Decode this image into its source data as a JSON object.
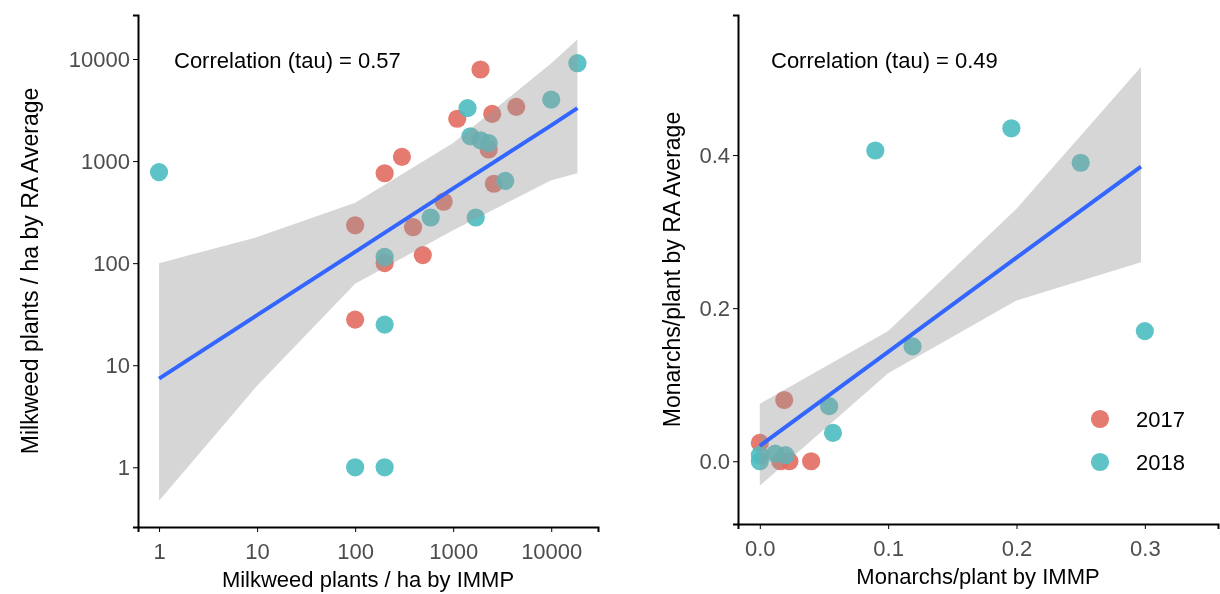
{
  "chart_data": [
    {
      "type": "scatter",
      "xlabel": "Milkweed plants / ha by IMMP",
      "ylabel": "Milkweed plants / ha by RA Average",
      "log": "xy",
      "xlim": [
        0.61,
        30000
      ],
      "ylim": [
        0.26,
        27000
      ],
      "xticks": [
        1,
        10,
        100,
        1000,
        10000
      ],
      "yticks": [
        1,
        10,
        100,
        1000,
        10000
      ],
      "marker": "circle",
      "legend": false,
      "annotations": [
        "Correlation (tau) = 0.57"
      ],
      "series": [
        {
          "type": "line",
          "marker": "none",
          "color": "#3366ff",
          "x": [
            1,
            10,
            100,
            1000,
            10000,
            18500
          ],
          "values": [
            7.4,
            31,
            129,
            540,
            2240,
            3300
          ],
          "lower": [
            0.47,
            6.3,
            63,
            210,
            650,
            760
          ],
          "upper": [
            100,
            180,
            390,
            1500,
            9100,
            15500
          ]
        },
        {
          "color": "#e26c62",
          "x": [
            1900,
            4400,
            1100,
            2500,
            2300,
            2600,
            300,
            200,
            800,
            390,
            100,
            490,
            200,
            100
          ],
          "values": [
            7900,
            3400,
            2600,
            2900,
            1300,
            600,
            1100,
            760,
            400,
            225,
            235,
            120,
            100,
            28
          ]
        },
        {
          "color": "#4dbdc0",
          "x": [
            18500,
            10000,
            1400,
            1500,
            2300,
            1900,
            3400,
            1,
            590,
            1700,
            200,
            200,
            100,
            200
          ],
          "values": [
            9100,
            4000,
            3300,
            1750,
            1500,
            1600,
            640,
            780,
            280,
            280,
            115,
            25,
            1,
            1
          ]
        }
      ]
    },
    {
      "type": "scatter",
      "xlabel": "Monarchs/plant by IMMP",
      "ylabel": "Monarchs/plant by RA Average",
      "xlim": [
        -0.017,
        0.357
      ],
      "ylim": [
        -0.082,
        0.583
      ],
      "xticks": [
        {
          "value": 0,
          "label": "0.0"
        },
        {
          "value": 0.1,
          "label": "0.1"
        },
        {
          "value": 0.2,
          "label": "0.2"
        },
        {
          "value": 0.3,
          "label": "0.3"
        }
      ],
      "yticks": [
        {
          "value": 0,
          "label": "0.0"
        },
        {
          "value": 0.2,
          "label": "0.2"
        },
        {
          "value": 0.4,
          "label": "0.4"
        }
      ],
      "marker": "circle",
      "legend": "bottom right",
      "annotations": [
        "Correlation (tau) = 0.49"
      ],
      "series": [
        {
          "type": "line",
          "marker": "none",
          "color": "#3366ff",
          "x": [
            0,
            0.1,
            0.2,
            0.297
          ],
          "values": [
            0.02,
            0.143,
            0.266,
            0.385
          ],
          "lower": [
            -0.032,
            0.115,
            0.21,
            0.26
          ],
          "upper": [
            0.075,
            0.17,
            0.33,
            0.515
          ]
        },
        {
          "name": "2017",
          "color": "#e26c62",
          "x": [
            0.019,
            0,
            0.016,
            0.023,
            0.04
          ],
          "values": [
            0.08,
            0.024,
            0,
            0,
            0
          ]
        },
        {
          "name": "2018",
          "color": "#4dbdc0",
          "x": [
            0.09,
            0.196,
            0.25,
            0.3,
            0.119,
            0.054,
            0.057,
            0,
            0,
            0.012,
            0.02
          ],
          "values": [
            0.406,
            0.435,
            0.39,
            0.17,
            0.15,
            0.072,
            0.037,
            0.008,
            0,
            0.01,
            0.008
          ]
        }
      ]
    }
  ]
}
